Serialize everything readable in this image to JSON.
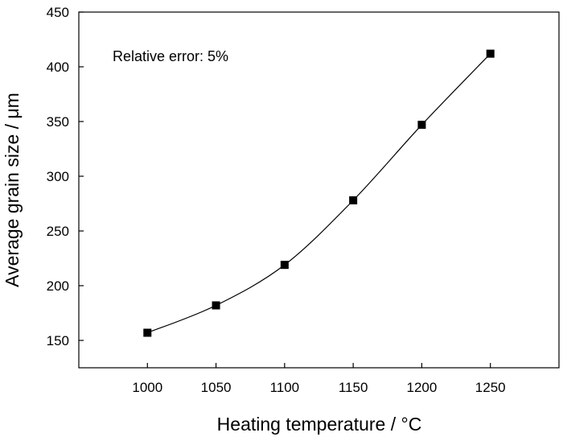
{
  "chart_data": {
    "type": "scatter",
    "xlabel": "Heating temperature / °C",
    "ylabel": "Average grain size / μm",
    "annotation": "Relative error: 5%",
    "xlim": [
      950,
      1300
    ],
    "ylim": [
      125,
      450
    ],
    "x_ticks": [
      1000,
      1050,
      1100,
      1150,
      1200,
      1250
    ],
    "y_ticks": [
      150,
      200,
      250,
      300,
      350,
      400,
      450
    ],
    "grid": false,
    "legend": "none",
    "marker": "square",
    "trend_line": "smooth curve through points",
    "colors": {
      "marker": "#000000",
      "line": "#000000"
    },
    "points": [
      {
        "x": 1000,
        "y": 157
      },
      {
        "x": 1050,
        "y": 182
      },
      {
        "x": 1100,
        "y": 219
      },
      {
        "x": 1150,
        "y": 278
      },
      {
        "x": 1200,
        "y": 347
      },
      {
        "x": 1250,
        "y": 412
      }
    ]
  }
}
